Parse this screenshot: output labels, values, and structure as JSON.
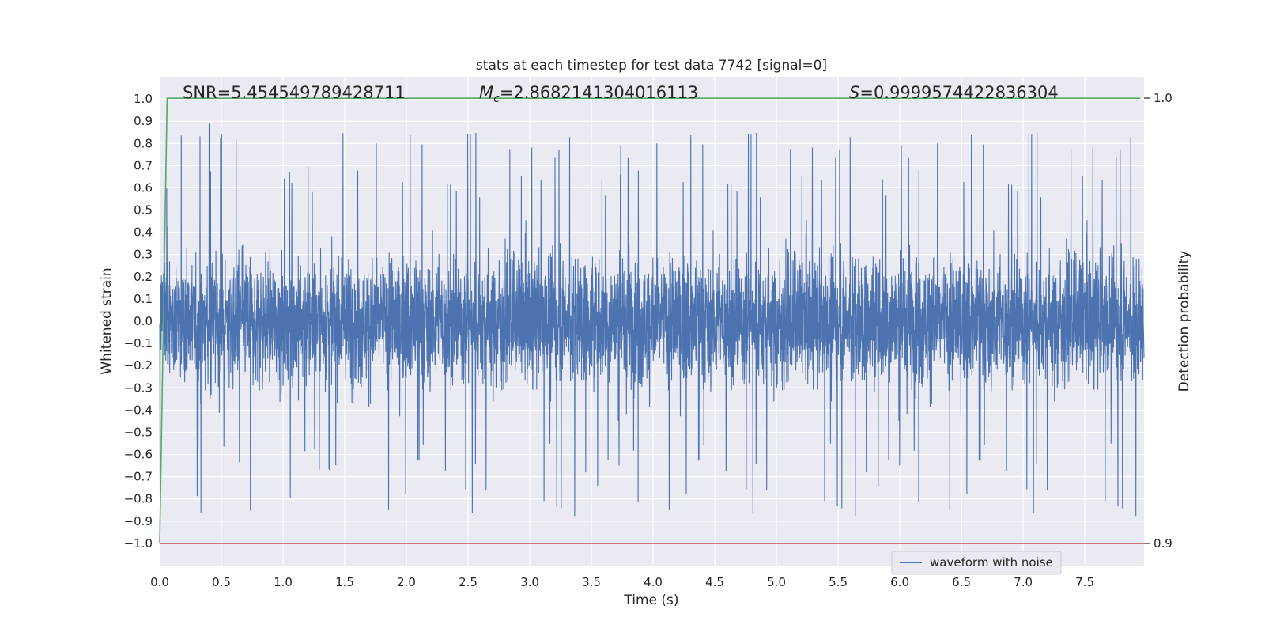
{
  "chart_data": {
    "type": "line",
    "title": "stats at each timestep for test data 7742 [signal=0]",
    "xlabel": "Time (s)",
    "ylabel": "Whitened strain",
    "y2label": "Detection probability",
    "xlim": [
      0.0,
      7.98
    ],
    "ylim": [
      -1.1,
      1.1
    ],
    "y2lim": [
      0.9,
      1.0
    ],
    "x_ticks": [
      "0.0",
      "0.5",
      "1.0",
      "1.5",
      "2.0",
      "2.5",
      "3.0",
      "3.5",
      "4.0",
      "4.5",
      "5.0",
      "5.5",
      "6.0",
      "6.5",
      "7.0",
      "7.5"
    ],
    "y_ticks": [
      "1.0",
      "0.9",
      "0.8",
      "0.7",
      "0.6",
      "0.5",
      "0.4",
      "0.3",
      "0.2",
      "0.1",
      "0.0",
      "-0.1",
      "-0.2",
      "-0.3",
      "-0.4",
      "-0.5",
      "-0.6",
      "-0.7",
      "-0.8",
      "-0.9",
      "-1.0"
    ],
    "y2_ticks": [
      "1.0",
      "0.9"
    ],
    "grid": true,
    "legend_position": "lower-right",
    "annotations": {
      "snr": "SNR=5.454549789428711",
      "mc_symbol": "M",
      "mc_sub": "c",
      "mc_value": "=2.8682141304016113",
      "s_symbol": "S",
      "s_value": "=0.9999574422836304"
    },
    "series": [
      {
        "name": "waveform with noise",
        "axis": "left",
        "color": "#4c72b0",
        "description_of_values": "noise amplitude envelope ~±0.35 with peaks up to ~0.96 and troughs down to ~-1.0 across 0–7.98 s",
        "x_range": [
          0.0,
          7.98
        ],
        "y_range": [
          -1.0,
          0.96
        ]
      },
      {
        "axis": "right",
        "color": "#55a868",
        "x": [
          0.0,
          0.06,
          7.95
        ],
        "y": [
          0.9,
          0.99996,
          0.99996
        ]
      },
      {
        "axis": "right",
        "color": "#c44e52",
        "x": [
          0.0,
          7.98
        ],
        "y": [
          0.9,
          0.9
        ]
      }
    ]
  }
}
